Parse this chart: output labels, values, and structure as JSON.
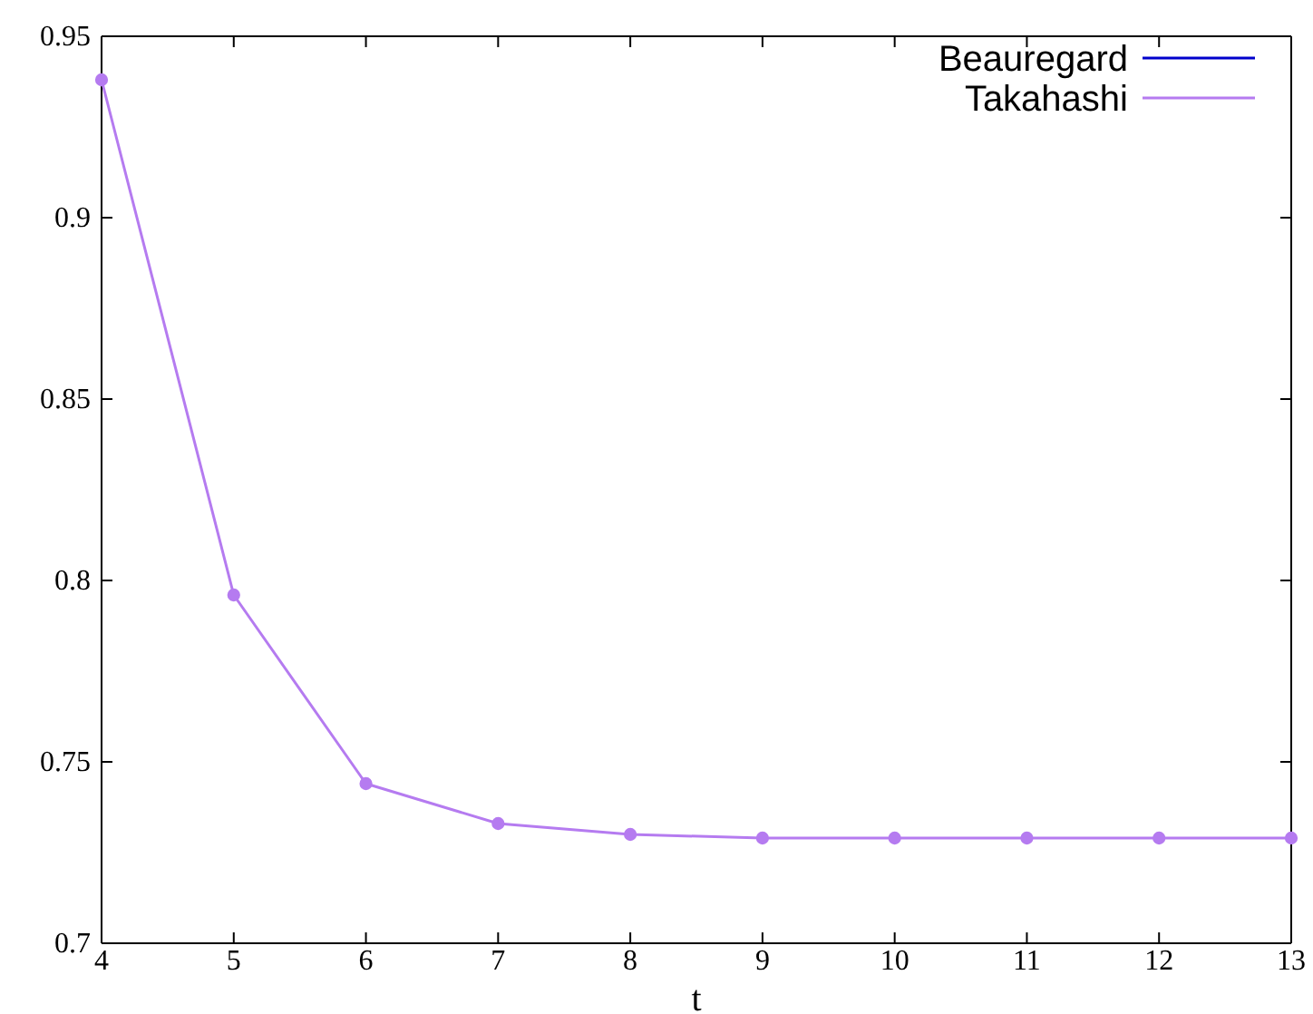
{
  "chart_data": {
    "type": "line",
    "xlabel": "t",
    "x": [
      4,
      5,
      6,
      7,
      8,
      9,
      10,
      11,
      12,
      13
    ],
    "xlim": [
      4,
      13
    ],
    "xticks": [
      4,
      5,
      6,
      7,
      8,
      9,
      10,
      11,
      12,
      13
    ],
    "ylim": [
      0.7,
      0.95
    ],
    "yticks": [
      0.7,
      0.75,
      0.8,
      0.85,
      0.9,
      0.95
    ],
    "series": [
      {
        "name": "Beauregard",
        "color": "#0000cc",
        "values": [
          null,
          null,
          null,
          null,
          null,
          null,
          null,
          null,
          null,
          null
        ]
      },
      {
        "name": "Takahashi",
        "color": "#b57bf0",
        "values": [
          0.938,
          0.796,
          0.744,
          0.733,
          0.73,
          0.729,
          0.729,
          0.729,
          0.729,
          0.729
        ]
      }
    ],
    "marker": "circle",
    "legend": "top right",
    "grid": false
  }
}
